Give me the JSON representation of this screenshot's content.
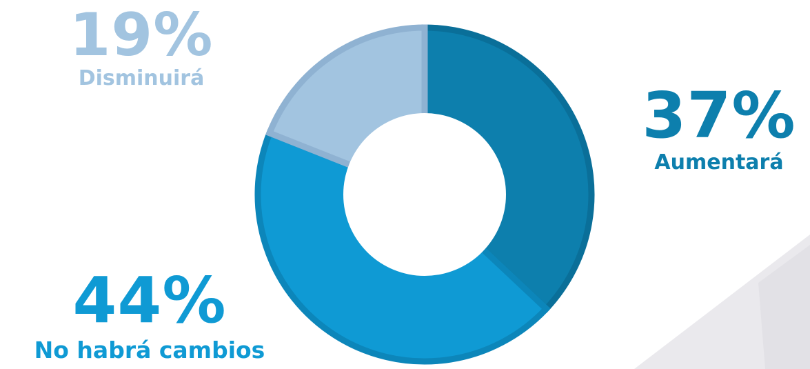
{
  "chart_data": {
    "type": "pie",
    "donut": true,
    "slices": [
      {
        "label": "Aumentará",
        "value": 37,
        "display": "37%",
        "color": "#0d7fad",
        "stroke": "#0a6f99"
      },
      {
        "label": "No habrá cambios",
        "value": 44,
        "display": "44%",
        "color": "#0f9ad4",
        "stroke": "#0c86ba"
      },
      {
        "label": "Disminuirá",
        "value": 19,
        "display": "19%",
        "color": "#a2c4e0",
        "stroke": "#8fb2d2"
      }
    ]
  },
  "colors": {
    "background": "#ffffff",
    "corner_shape": "#e9e8ec"
  }
}
